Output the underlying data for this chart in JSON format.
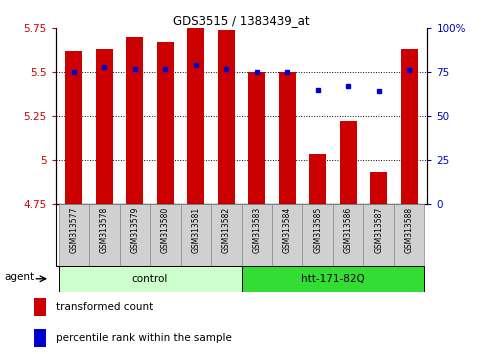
{
  "title": "GDS3515 / 1383439_at",
  "samples": [
    "GSM313577",
    "GSM313578",
    "GSM313579",
    "GSM313580",
    "GSM313581",
    "GSM313582",
    "GSM313583",
    "GSM313584",
    "GSM313585",
    "GSM313586",
    "GSM313587",
    "GSM313588"
  ],
  "bar_values": [
    5.62,
    5.63,
    5.7,
    5.67,
    5.75,
    5.74,
    5.5,
    5.5,
    5.03,
    5.22,
    4.93,
    5.63
  ],
  "percentile_values": [
    75,
    78,
    77,
    77,
    79,
    77,
    75,
    75,
    65,
    67,
    64,
    76
  ],
  "bar_bottom": 4.75,
  "ylim_left": [
    4.75,
    5.75
  ],
  "ylim_right": [
    0,
    100
  ],
  "yticks_left": [
    4.75,
    5.0,
    5.25,
    5.5,
    5.75
  ],
  "yticks_right": [
    0,
    25,
    50,
    75,
    100
  ],
  "ytick_labels_left": [
    "4.75",
    "5",
    "5.25",
    "5.5",
    "5.75"
  ],
  "ytick_labels_right": [
    "0",
    "25",
    "50",
    "75",
    "100%"
  ],
  "hlines": [
    5.0,
    5.25,
    5.5
  ],
  "bar_color": "#cc0000",
  "percentile_color": "#0000cc",
  "groups": [
    {
      "label": "control",
      "start": 0,
      "end": 6,
      "color": "#ccffcc"
    },
    {
      "label": "htt-171-82Q",
      "start": 6,
      "end": 12,
      "color": "#33dd33"
    }
  ],
  "agent_label": "agent",
  "legend_bar_label": "transformed count",
  "legend_dot_label": "percentile rank within the sample",
  "bar_width": 0.55,
  "background_color": "#ffffff",
  "plot_bg_color": "#ffffff",
  "tick_color_left": "#cc0000",
  "tick_color_right": "#0000cc",
  "label_box_color": "#d0d0d0",
  "label_box_edge": "#888888"
}
